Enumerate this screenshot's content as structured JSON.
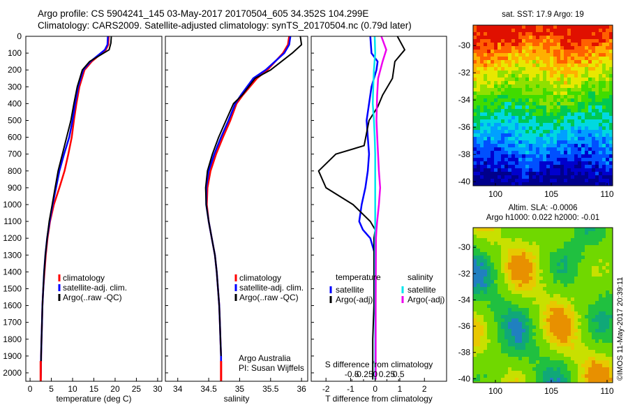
{
  "header": {
    "line1": "Argo profile: CS 5904241_145 03-May-2017 20170504_605 34.352S 104.299E",
    "line2": "Climatology: CARS2009. Satellite-adjusted climatology: synTS_20170504.nc (0.79d later)"
  },
  "credit": "©IMOS 11-May-2017 20:39:11",
  "colors": {
    "climatology": "#ff0000",
    "satellite": "#0000ff",
    "argo": "#000000",
    "salinity_satellite": "#00e5ee",
    "salinity_argo": "#ee00ee"
  },
  "chart_data": [
    {
      "type": "line",
      "panel": "temperature",
      "xlabel": "temperature (deg C)",
      "ylabel": "",
      "xlim": [
        -1,
        31
      ],
      "ylim": [
        2050,
        0
      ],
      "xticks": [
        0,
        5,
        10,
        15,
        20,
        25,
        30
      ],
      "yticks": [
        0,
        100,
        200,
        300,
        400,
        500,
        600,
        700,
        800,
        900,
        1000,
        1100,
        1200,
        1300,
        1400,
        1500,
        1600,
        1700,
        1800,
        1900,
        2000
      ],
      "legend": [
        "climatology",
        "satellite-adj. clim.",
        "Argo(..raw -QC)"
      ],
      "legend_placement": "lower-right",
      "series": [
        {
          "name": "climatology",
          "color": "#ff0000",
          "x": [
            18.5,
            18.4,
            17.8,
            14.5,
            12.8,
            11.6,
            10.9,
            10.3,
            9.8,
            9.0,
            8.1,
            6.9,
            5.6,
            4.7,
            4.1,
            3.7,
            3.4,
            3.1,
            2.9,
            2.8,
            2.7,
            2.6,
            2.55,
            2.5
          ],
          "y": [
            0,
            50,
            80,
            150,
            200,
            300,
            400,
            500,
            600,
            700,
            800,
            900,
            1000,
            1100,
            1200,
            1300,
            1400,
            1500,
            1600,
            1700,
            1800,
            1900,
            2000,
            2040
          ]
        },
        {
          "name": "satellite-adj. clim.",
          "color": "#0000ff",
          "x": [
            18.3,
            18.2,
            17.6,
            14.2,
            12.5,
            11.3,
            10.6,
            10.0,
            9.2,
            8.0,
            6.9,
            6.1,
            5.3,
            4.6,
            4.0,
            3.6,
            3.3,
            3.1,
            2.9,
            2.8,
            2.7,
            2.6,
            2.55,
            2.5
          ],
          "y": [
            0,
            50,
            80,
            150,
            200,
            300,
            400,
            500,
            600,
            700,
            800,
            900,
            1000,
            1100,
            1200,
            1300,
            1400,
            1500,
            1600,
            1700,
            1800,
            1900,
            2000,
            2040
          ]
        },
        {
          "name": "Argo(..raw -QC)",
          "color": "#000000",
          "x": [
            19.1,
            19.0,
            18.6,
            14.0,
            12.3,
            11.1,
            10.3,
            9.6,
            8.6,
            7.6,
            6.6,
            5.9,
            5.2,
            4.5,
            4.0,
            3.6,
            3.3,
            3.1,
            2.9,
            2.8,
            2.7,
            2.6,
            2.55
          ],
          "y": [
            0,
            40,
            80,
            150,
            200,
            300,
            400,
            500,
            600,
            700,
            800,
            900,
            1000,
            1100,
            1200,
            1300,
            1400,
            1500,
            1600,
            1700,
            1800,
            1900,
            2000
          ]
        }
      ]
    },
    {
      "type": "line",
      "panel": "salinity",
      "xlabel": "salinity",
      "xlim": [
        33.8,
        36.1
      ],
      "ylim": [
        2050,
        0
      ],
      "xticks": [
        34,
        34.5,
        35,
        35.5,
        36
      ],
      "legend": [
        "climatology",
        "satellite-adj. clim.",
        "Argo(..raw -QC)"
      ],
      "legend_placement": "lower-right",
      "annotation": [
        "Argo Australia",
        "PI: Susan Wijffels"
      ],
      "series": [
        {
          "name": "climatology",
          "color": "#ff0000",
          "x": [
            35.8,
            35.78,
            35.7,
            35.45,
            35.28,
            35.05,
            34.95,
            34.85,
            34.73,
            34.62,
            34.53,
            34.48,
            34.47,
            34.5,
            34.55,
            34.6,
            34.63,
            34.65,
            34.67,
            34.68,
            34.69,
            34.7,
            34.7
          ],
          "y": [
            0,
            50,
            100,
            200,
            250,
            350,
            400,
            500,
            600,
            700,
            800,
            900,
            1000,
            1100,
            1200,
            1300,
            1400,
            1500,
            1600,
            1700,
            1800,
            1900,
            2040
          ]
        },
        {
          "name": "satellite-adj. clim.",
          "color": "#0000ff",
          "x": [
            35.82,
            35.8,
            35.72,
            35.42,
            35.22,
            35.02,
            34.93,
            34.82,
            34.7,
            34.59,
            34.5,
            34.46,
            34.46,
            34.5,
            34.55,
            34.6,
            34.63,
            34.65,
            34.67,
            34.68,
            34.69,
            34.7,
            34.7
          ],
          "y": [
            0,
            50,
            100,
            200,
            250,
            350,
            400,
            500,
            600,
            700,
            800,
            900,
            1000,
            1100,
            1200,
            1300,
            1400,
            1500,
            1600,
            1700,
            1800,
            1900,
            2040
          ]
        },
        {
          "name": "Argo(..raw -QC)",
          "color": "#000000",
          "x": [
            35.98,
            36.0,
            35.85,
            35.5,
            35.25,
            35.04,
            34.9,
            34.78,
            34.66,
            34.56,
            34.48,
            34.45,
            34.46,
            34.5,
            34.55,
            34.6,
            34.63,
            34.65,
            34.67,
            34.68,
            34.69,
            34.7
          ],
          "y": [
            0,
            50,
            100,
            200,
            250,
            350,
            400,
            500,
            600,
            700,
            800,
            900,
            1000,
            1100,
            1200,
            1300,
            1400,
            1500,
            1600,
            1700,
            1800,
            1900
          ]
        }
      ]
    },
    {
      "type": "line",
      "panel": "difference",
      "xlabel": "T difference from climatology",
      "xlabel_top": "S difference from climatology",
      "xlim": [
        -2.6,
        2.9
      ],
      "ylim": [
        2050,
        0
      ],
      "xticks": [
        -2,
        -1,
        0,
        1,
        2
      ],
      "xticklabels": [
        "-2",
        "-1",
        "0",
        "1",
        "2"
      ],
      "sticks": [
        -0.5,
        -0.25,
        0,
        0.25,
        0.5
      ],
      "sticklabels": [
        "-0.5",
        "-0.25",
        "0",
        "0.25",
        "0.5"
      ],
      "legend_groups": [
        {
          "title": "temperature",
          "items": [
            "satellite",
            "Argo(-adj)"
          ]
        },
        {
          "title": "salinity",
          "items": [
            "satellite",
            "Argo(-adj)"
          ]
        }
      ],
      "series": [
        {
          "name": "temperature satellite",
          "color": "#0000ff",
          "x": [
            -0.2,
            -0.15,
            0.1,
            0.05,
            -0.15,
            -0.25,
            -0.35,
            -0.3,
            -0.25,
            -0.3,
            -0.4,
            -0.55,
            -0.65,
            -0.5,
            -0.2,
            0.0,
            0.0
          ],
          "y": [
            0,
            100,
            150,
            200,
            300,
            400,
            500,
            600,
            700,
            800,
            900,
            1000,
            1100,
            1150,
            1200,
            1300,
            1400
          ]
        },
        {
          "name": "temperature Argo(-adj)",
          "color": "#000000",
          "x": [
            0.9,
            1.2,
            0.8,
            0.7,
            0.3,
            0.1,
            -0.25,
            -0.45,
            -1.6,
            -2.3,
            -2.0,
            -0.9,
            -0.2,
            0.0,
            -0.05,
            -0.05,
            -0.05,
            -0.1,
            -0.1,
            -0.1
          ],
          "y": [
            0,
            80,
            150,
            250,
            350,
            420,
            500,
            650,
            700,
            800,
            900,
            1000,
            1100,
            1150,
            1200,
            1400,
            1600,
            1800,
            2000,
            2040
          ]
        },
        {
          "name": "salinity satellite",
          "color": "#00e5ee",
          "x": [
            -0.02,
            0.0,
            -0.05,
            -0.08,
            -0.1,
            -0.05,
            -0.02,
            0.0,
            0.0,
            0.0,
            0.0,
            0.0,
            0.0,
            0.0,
            0.0
          ],
          "y": [
            0,
            100,
            200,
            300,
            400,
            500,
            600,
            700,
            800,
            900,
            1000,
            1100,
            1200,
            1600,
            2040
          ]
        },
        {
          "name": "salinity Argo(-adj)",
          "color": "#ee00ee",
          "x": [
            0.25,
            0.45,
            0.3,
            0.12,
            0.08,
            0.05,
            0.1,
            0.15,
            0.2,
            0.15,
            0.08,
            0.05,
            0.03,
            0.02,
            0.02
          ],
          "y": [
            0,
            80,
            150,
            250,
            350,
            500,
            650,
            800,
            900,
            1000,
            1100,
            1150,
            1200,
            1600,
            2040
          ]
        }
      ]
    },
    {
      "type": "heatmap",
      "panel": "sst-map",
      "title": "sat. SST: 17.9  Argo: 19",
      "xticks": [
        100,
        105,
        110
      ],
      "yticks": [
        -30,
        -32,
        -34,
        -36,
        -38,
        -40
      ],
      "xlim": [
        98,
        110.5
      ],
      "ylim": [
        -40.3,
        -28.5
      ]
    },
    {
      "type": "heatmap",
      "panel": "sla-map",
      "title": "Altim. SLA: -0.0006",
      "subtitle": "Argo h1000: 0.022 h2000: -0.01",
      "xticks": [
        100,
        105,
        110
      ],
      "yticks": [
        -30,
        -32,
        -34,
        -36,
        -38,
        -40
      ],
      "xlim": [
        98,
        110.5
      ],
      "ylim": [
        -40.3,
        -28.5
      ]
    }
  ]
}
